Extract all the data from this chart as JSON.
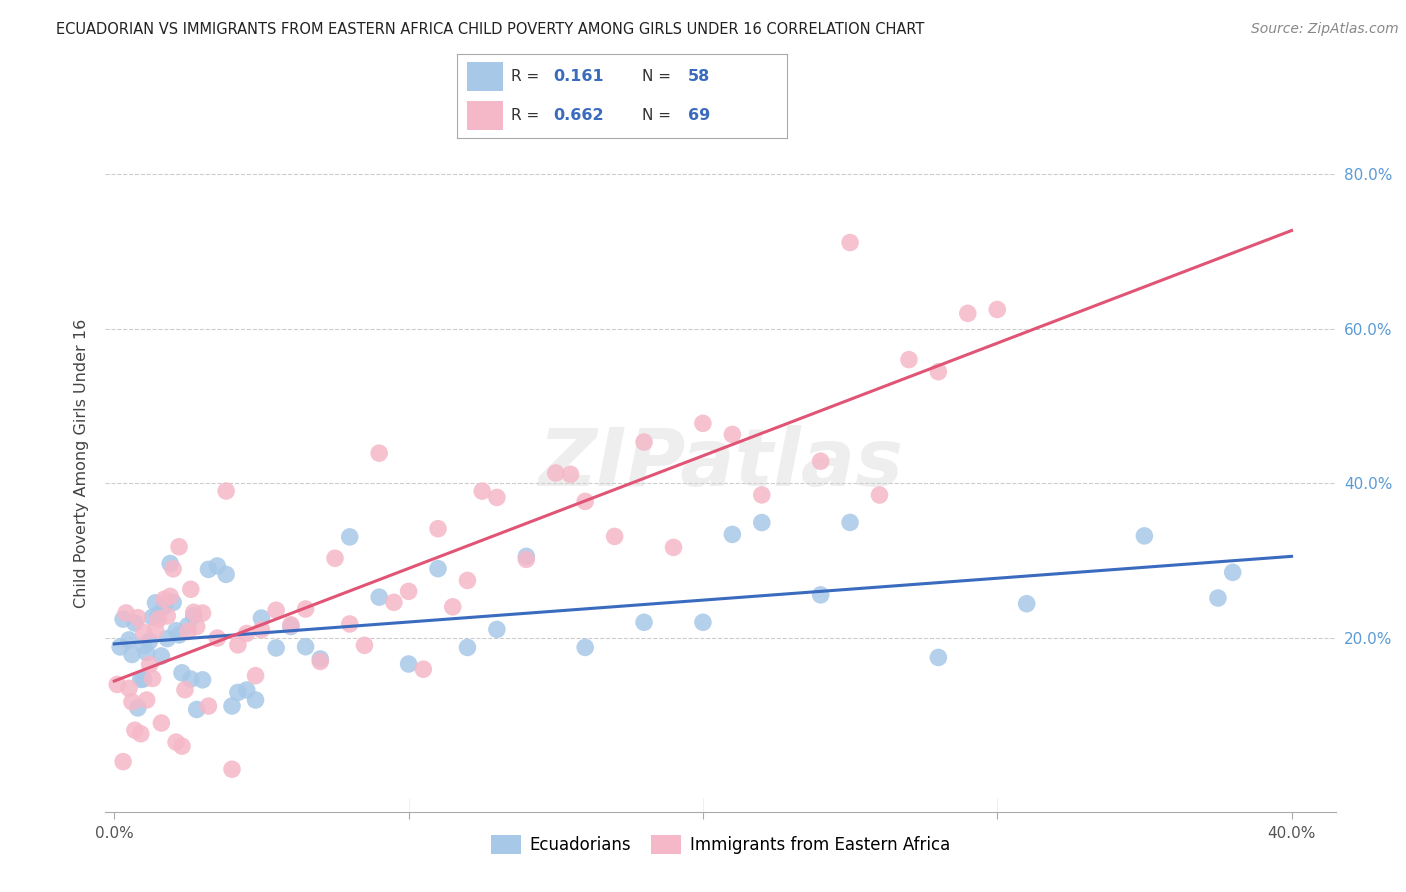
{
  "title": "ECUADORIAN VS IMMIGRANTS FROM EASTERN AFRICA CHILD POVERTY AMONG GIRLS UNDER 16 CORRELATION CHART",
  "source": "Source: ZipAtlas.com",
  "ylabel": "Child Poverty Among Girls Under 16",
  "R_blue": 0.161,
  "N_blue": 58,
  "R_pink": 0.662,
  "N_pink": 69,
  "blue_scatter_color": "#a8c8e8",
  "pink_scatter_color": "#f5b8c8",
  "blue_line_color": "#3a6bbf",
  "pink_line_color": "#e05575",
  "legend_label_blue": "Ecuadorians",
  "legend_label_pink": "Immigrants from Eastern Africa",
  "watermark": "ZIPatlas",
  "right_tick_color": "#5b9bd5",
  "title_color": "#222222",
  "source_color": "#888888",
  "ylabel_color": "#444444",
  "tick_label_color": "#555555",
  "grid_color": "#cccccc",
  "xlim_min": -0.003,
  "xlim_max": 0.415,
  "ylim_min": -0.025,
  "ylim_max": 0.875
}
